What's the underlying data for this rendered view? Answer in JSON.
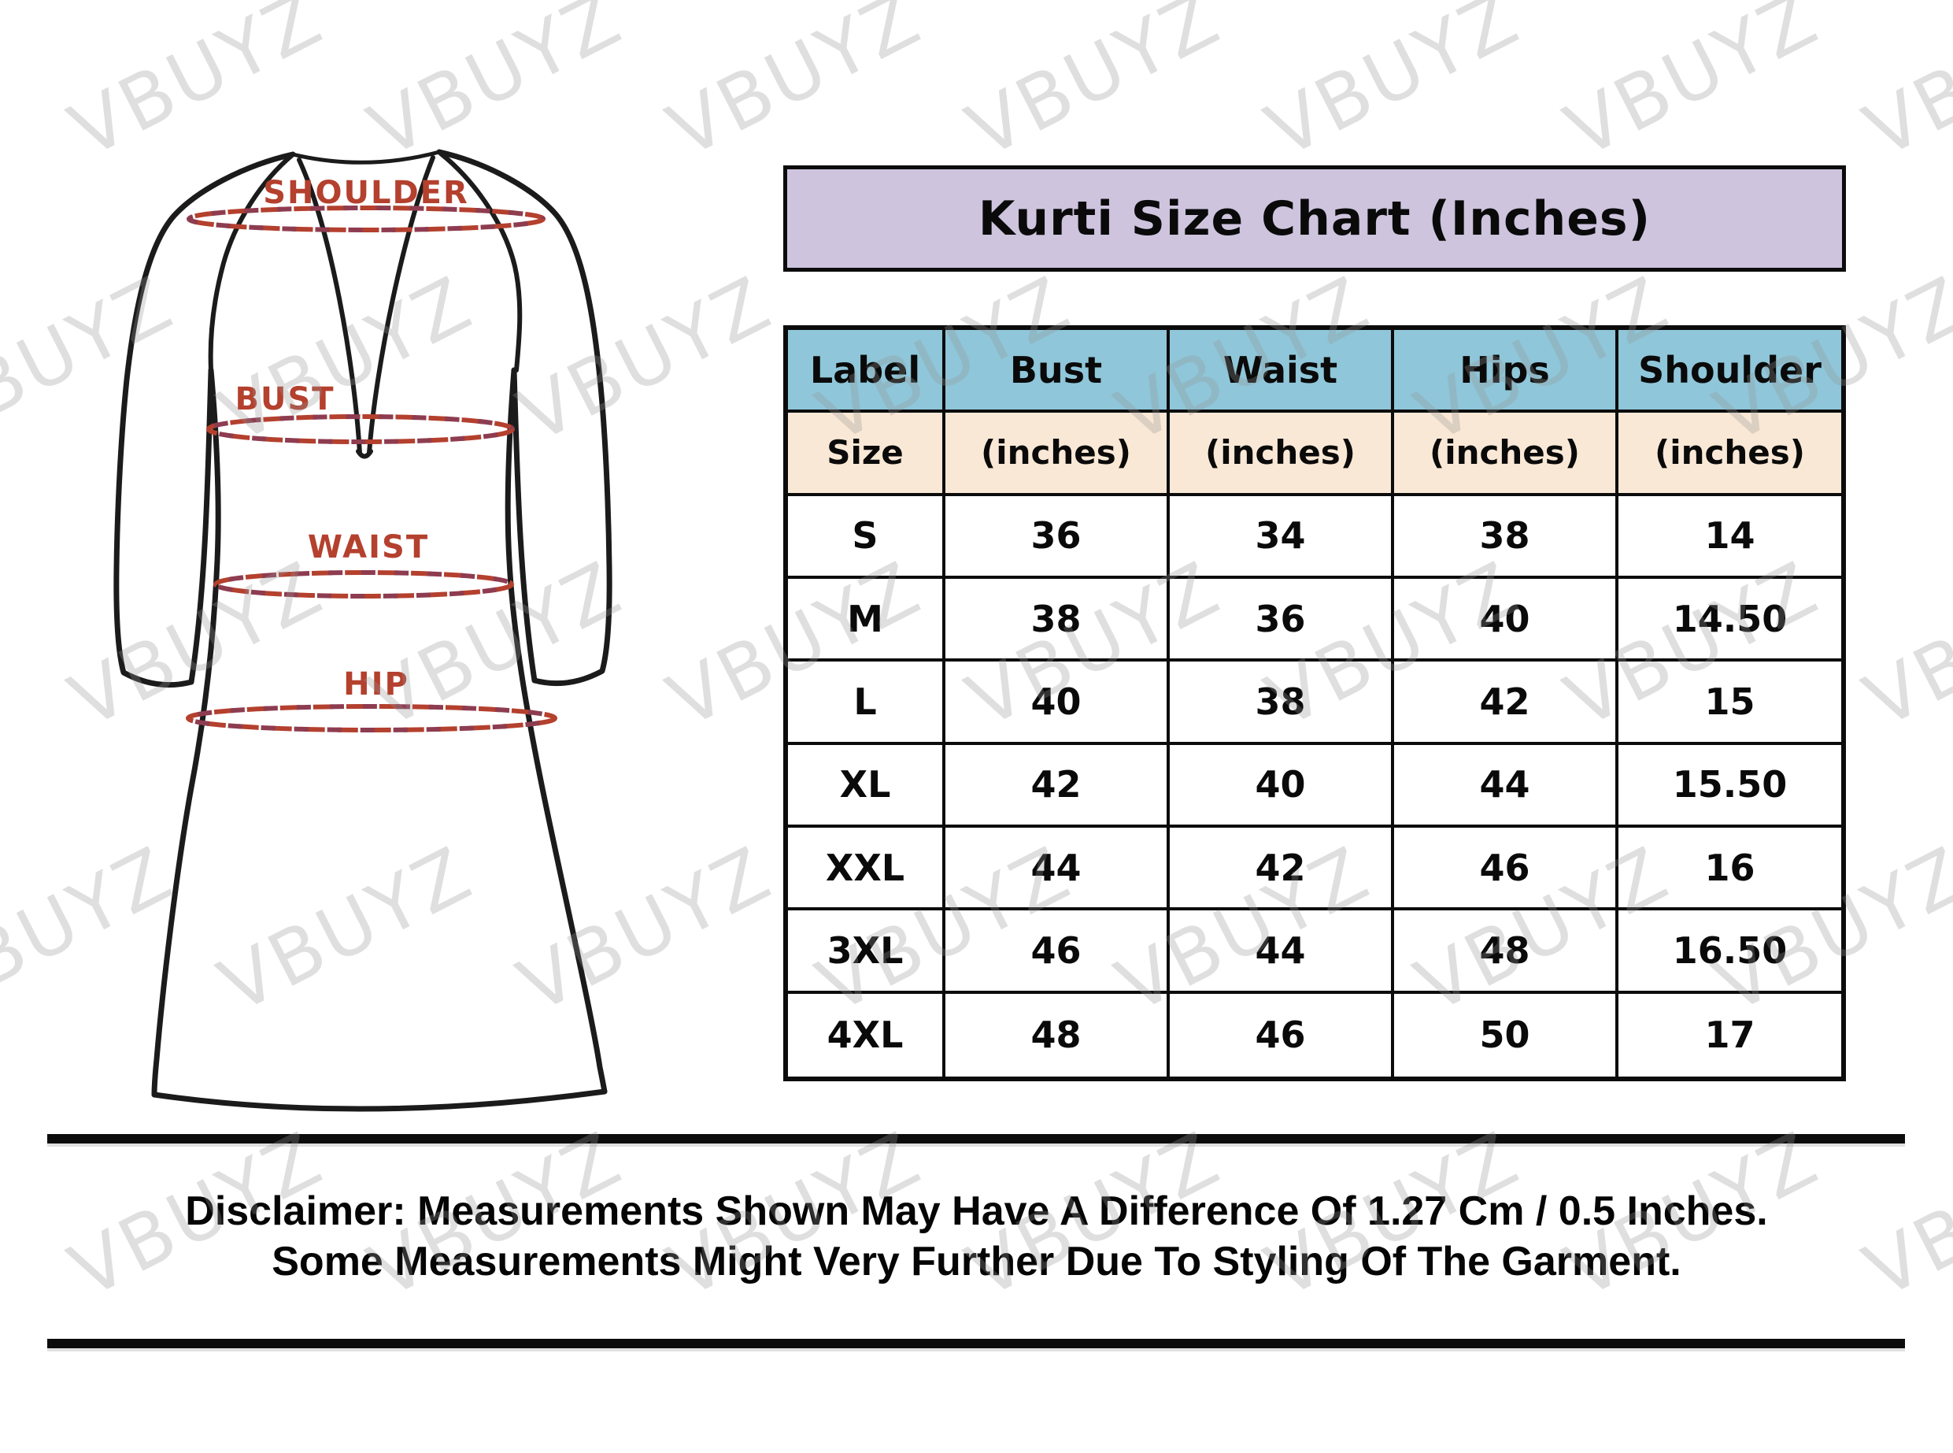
{
  "watermark": {
    "text": "VBUYZ"
  },
  "garment_diagram": {
    "labels": {
      "shoulder": "SHOULDER",
      "bust": "BUST",
      "waist": "WAIST",
      "hip": "HIP"
    }
  },
  "chart_data": {
    "type": "table",
    "title": "Kurti Size Chart (Inches)",
    "columns": [
      "Label",
      "Bust",
      "Waist",
      "Hips",
      "Shoulder"
    ],
    "subheader": [
      "Size",
      "(inches)",
      "(inches)",
      "(inches)",
      "(inches)"
    ],
    "rows": [
      [
        "S",
        "36",
        "34",
        "38",
        "14"
      ],
      [
        "M",
        "38",
        "36",
        "40",
        "14.50"
      ],
      [
        "L",
        "40",
        "38",
        "42",
        "15"
      ],
      [
        "XL",
        "42",
        "40",
        "44",
        "15.50"
      ],
      [
        "XXL",
        "44",
        "42",
        "46",
        "16"
      ],
      [
        "3XL",
        "46",
        "44",
        "48",
        "16.50"
      ],
      [
        "4XL",
        "48",
        "46",
        "50",
        "17"
      ]
    ]
  },
  "disclaimer": {
    "line1": "Disclaimer: Measurements Shown May Have A Difference Of 1.27 Cm / 0.5 Inches.",
    "line2": "Some Measurements Might Very Further Due To Styling Of The Garment."
  },
  "colors": {
    "title_bg": "#cec4de",
    "header_bg": "#8fc6d9",
    "subheader_bg": "#fae8d6",
    "accent_red": "#b4402e",
    "line_black": "#0c0c0c"
  }
}
